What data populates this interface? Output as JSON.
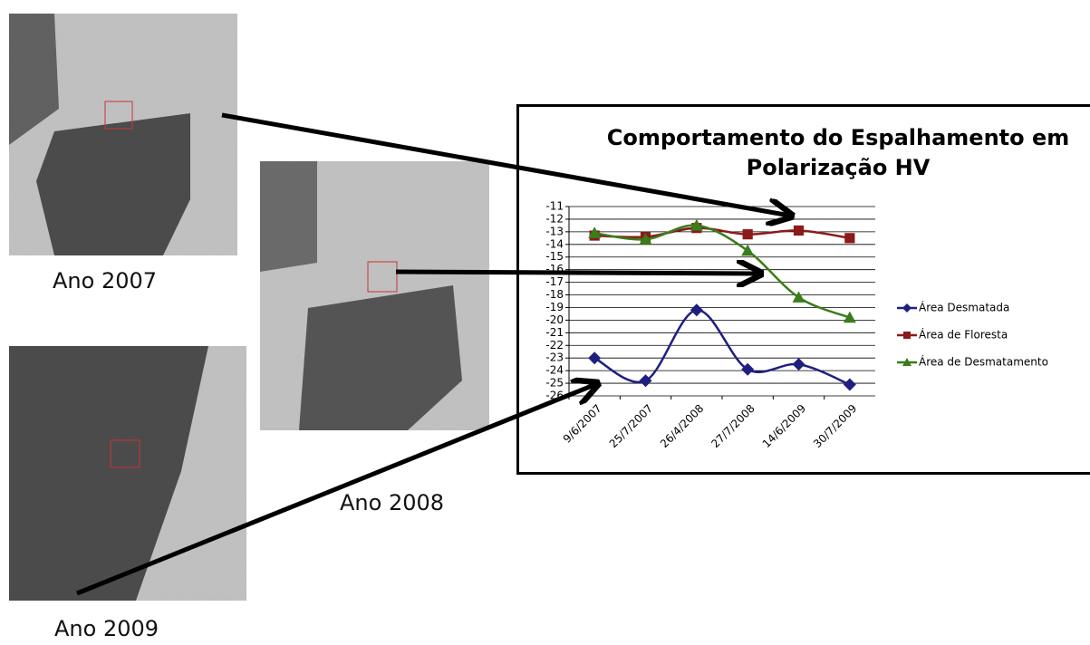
{
  "chart_data": {
    "type": "line",
    "title": "Comportamento do Espalhamento em Polarização HV",
    "categories": [
      "9/6/2007",
      "25/7/2007",
      "26/4/2008",
      "27/7/2008",
      "14/6/2009",
      "30/7/2009"
    ],
    "series": [
      {
        "name": "Área Desmatada",
        "color": "#1f1f80",
        "marker": "diamond",
        "values": [
          -23,
          -24.8,
          -19.2,
          -23.9,
          -23.5,
          -25.1
        ]
      },
      {
        "name": "Área de Floresta",
        "color": "#8b1a1a",
        "marker": "square",
        "values": [
          -13.3,
          -13.4,
          -12.7,
          -13.2,
          -12.9,
          -13.5
        ]
      },
      {
        "name": "Área de Desmatamento",
        "color": "#3a7d1a",
        "marker": "triangle",
        "values": [
          -13.1,
          -13.6,
          -12.5,
          -14.5,
          -18.2,
          -19.8
        ]
      }
    ],
    "ylim": [
      -26,
      -11
    ],
    "yticks": [
      -11,
      -12,
      -13,
      -14,
      -15,
      -16,
      -17,
      -18,
      -19,
      -20,
      -21,
      -22,
      -23,
      -24,
      -25,
      -26
    ],
    "grid": true,
    "legend": "right"
  },
  "captions": [
    "Ano 2007",
    "Ano 2008",
    "Ano 2009"
  ]
}
